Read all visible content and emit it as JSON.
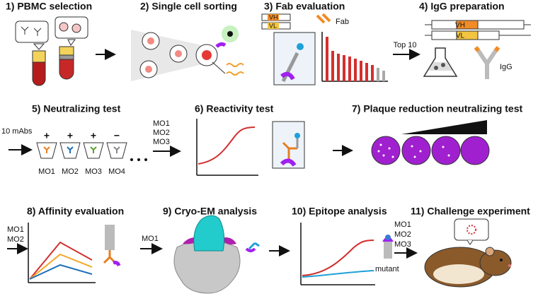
{
  "steps": [
    {
      "title": "1) PBMC selection"
    },
    {
      "title": "2) Single cell sorting"
    },
    {
      "title": "3) Fab evaluation",
      "labels": [
        "VH",
        "VL",
        "Fab"
      ]
    },
    {
      "title": "4) IgG preparation",
      "inputs": [
        "Top 10"
      ],
      "labels": [
        "VH",
        "VL",
        "IgG"
      ]
    },
    {
      "title": "5) Neutralizing test",
      "inputs": [
        "10 mAbs"
      ],
      "results": [
        "+",
        "+",
        "+",
        "−"
      ],
      "samples": [
        "MO1",
        "MO2",
        "MO3",
        "MO4"
      ]
    },
    {
      "title": "6) Reactivity test",
      "inputs": [
        "MO1",
        "MO2",
        "MO3"
      ]
    },
    {
      "title": "7) Plaque reduction neutralizing test"
    },
    {
      "title": "8) Affinity evaluation",
      "inputs": [
        "MO1",
        "MO2"
      ]
    },
    {
      "title": "9) Cryo-EM analysis",
      "inputs": [
        "MO1"
      ]
    },
    {
      "title": "10) Epitope analysis",
      "labels": [
        "mutant"
      ]
    },
    {
      "title": "11) Challenge experiment",
      "inputs": [
        "MO1",
        "MO2",
        "MO3"
      ]
    }
  ]
}
